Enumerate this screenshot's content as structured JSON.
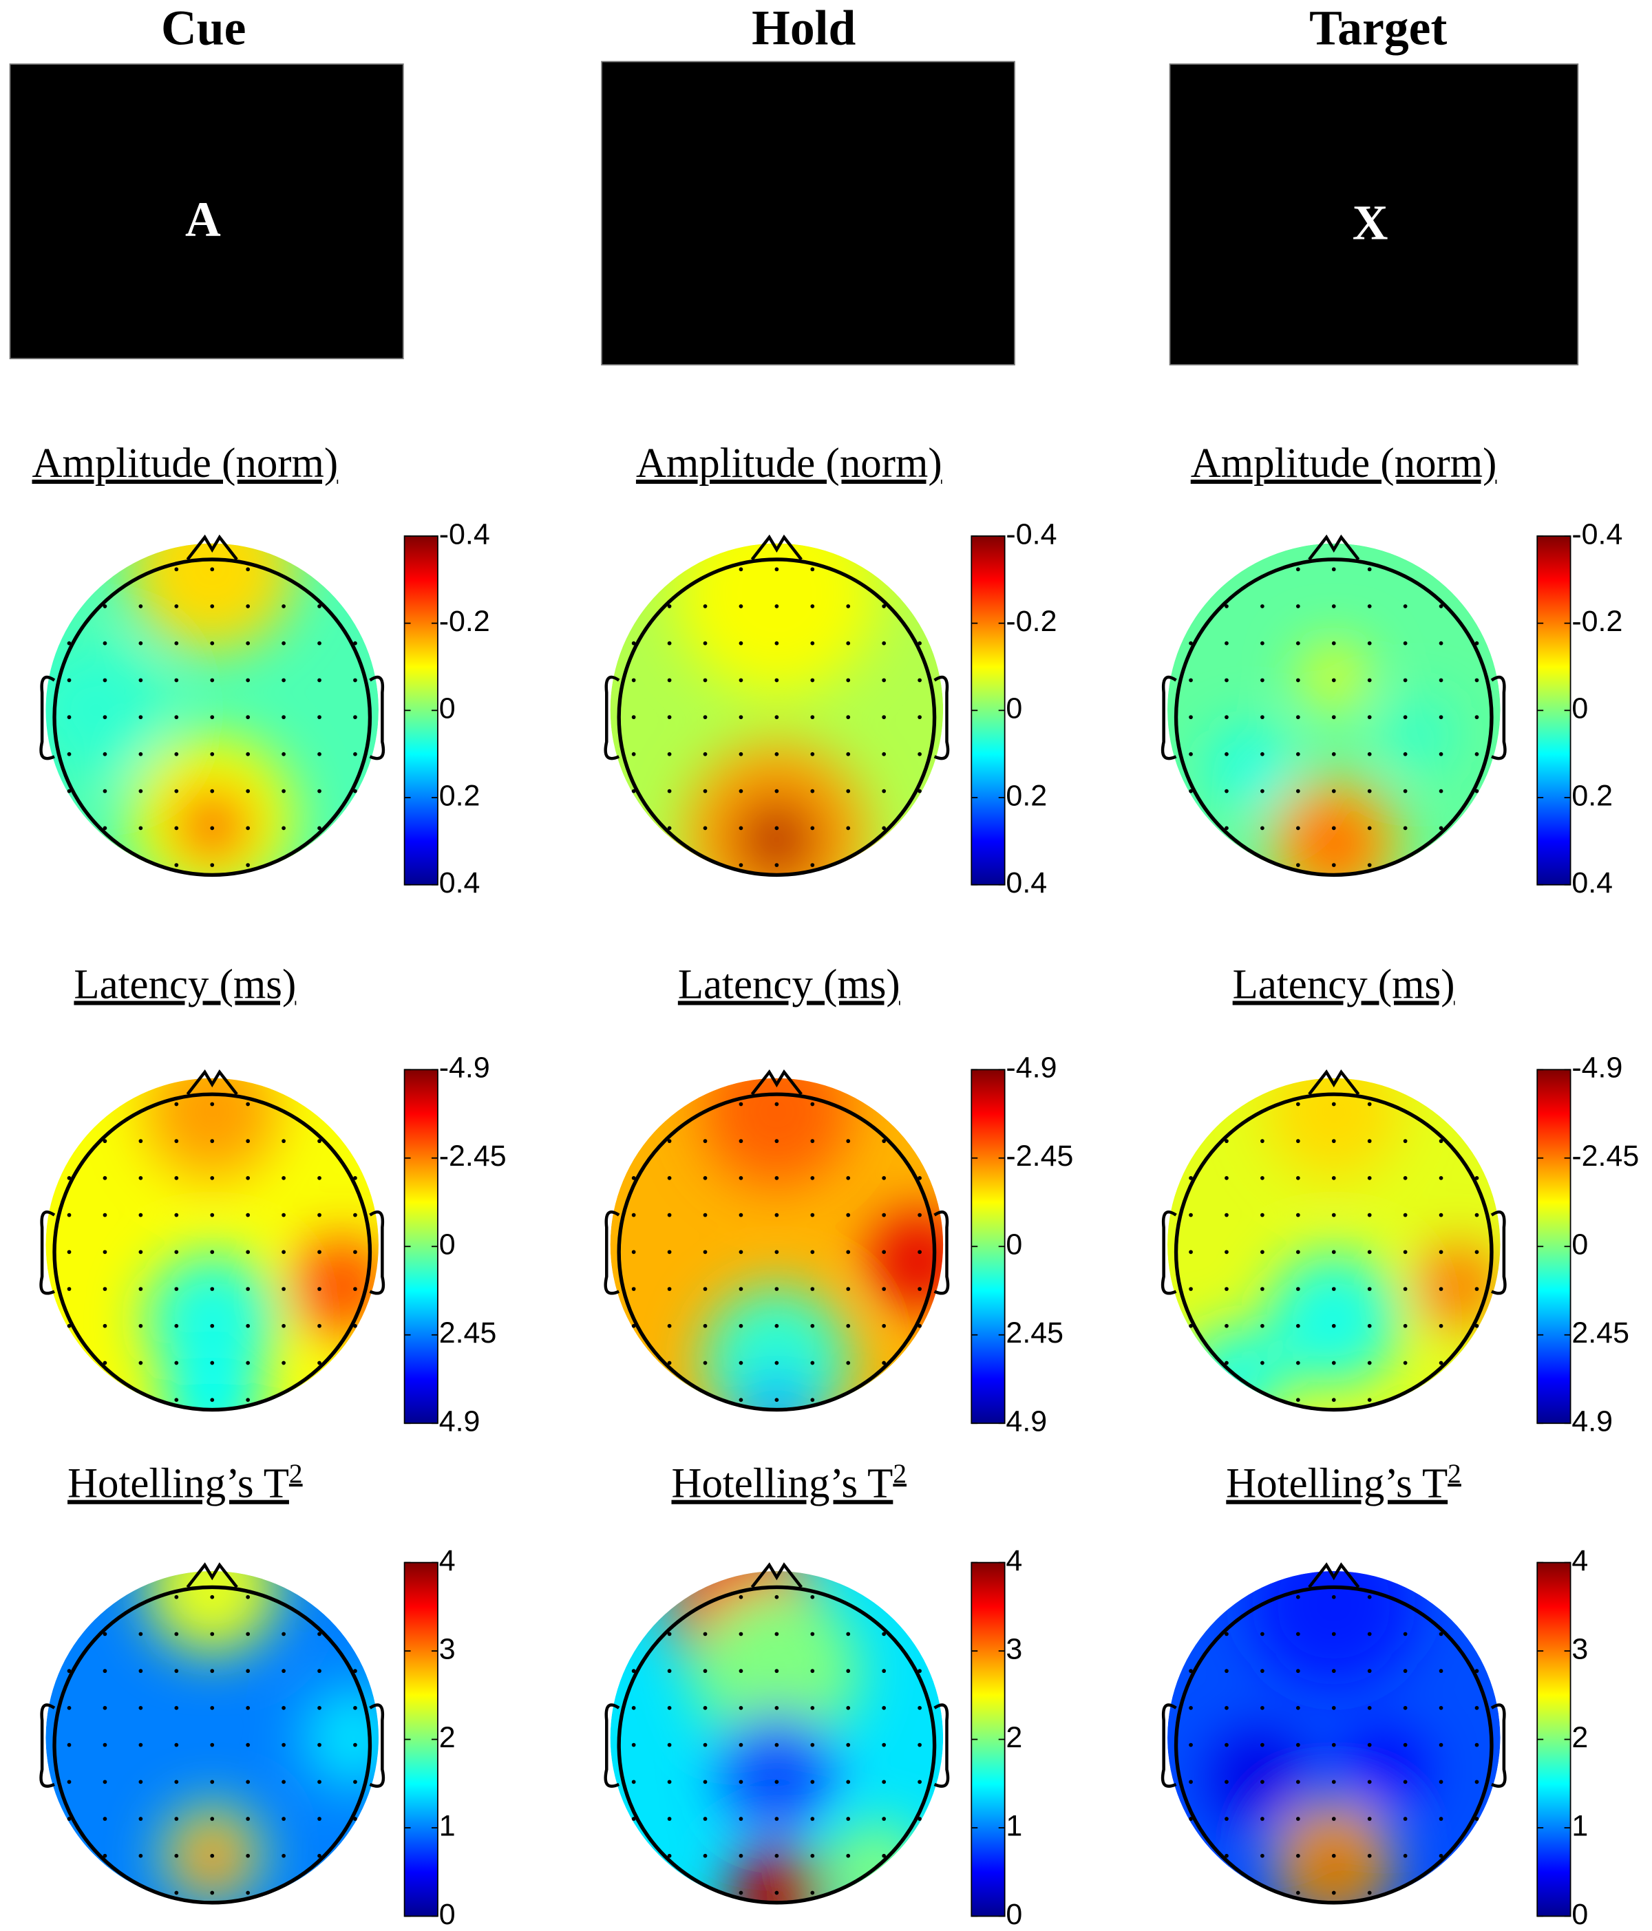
{
  "columns": [
    {
      "heading": "Cue",
      "stimulus": "A"
    },
    {
      "heading": "Hold"
    },
    {
      "heading": "Target",
      "stimulus": "X"
    }
  ],
  "rows": [
    {
      "title": "Amplitude (norm)",
      "range": [
        0.4,
        -0.4
      ],
      "ticks": [
        -0.4,
        -0.2,
        0,
        0.2,
        0.4
      ]
    },
    {
      "title": "Latency (ms)",
      "range": [
        4.9,
        -4.9
      ],
      "ticks": [
        -4.9,
        -2.45,
        0,
        2.45,
        4.9
      ]
    },
    {
      "title": "Hotelling’s T",
      "title_superscript": "2",
      "range": [
        0,
        4
      ],
      "ticks": [
        4,
        3,
        2,
        1,
        0
      ]
    }
  ]
}
